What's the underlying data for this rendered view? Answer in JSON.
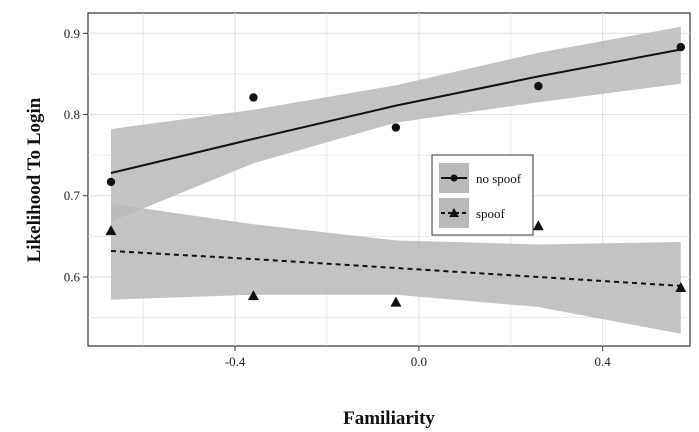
{
  "chart_data": {
    "type": "scatter",
    "xlabel": "Familiarity",
    "ylabel": "Likelihood To Login",
    "xlim": [
      -0.72,
      0.59
    ],
    "ylim": [
      0.515,
      0.925
    ],
    "x_ticks": [
      -0.4,
      0.0,
      0.4
    ],
    "x_tick_labels": [
      "-0.4",
      "0.0",
      "0.4"
    ],
    "y_ticks": [
      0.6,
      0.7,
      0.8,
      0.9
    ],
    "y_tick_labels": [
      "0.6",
      "0.7",
      "0.8",
      "0.9"
    ],
    "grid": true,
    "legend_position": "center-right",
    "series": [
      {
        "name": "no spoof",
        "marker": "circle",
        "line_style": "solid",
        "points": [
          {
            "x": -0.67,
            "y": 0.717
          },
          {
            "x": -0.36,
            "y": 0.821
          },
          {
            "x": -0.05,
            "y": 0.784
          },
          {
            "x": 0.26,
            "y": 0.835
          },
          {
            "x": 0.57,
            "y": 0.883
          }
        ],
        "trend": [
          {
            "x": -0.67,
            "y": 0.728
          },
          {
            "x": -0.36,
            "y": 0.77
          },
          {
            "x": -0.05,
            "y": 0.811
          },
          {
            "x": 0.26,
            "y": 0.847
          },
          {
            "x": 0.57,
            "y": 0.88
          }
        ],
        "band_lower": [
          0.668,
          0.74,
          0.79,
          0.815,
          0.838
        ],
        "band_upper": [
          0.782,
          0.806,
          0.836,
          0.876,
          0.908
        ]
      },
      {
        "name": "spoof",
        "marker": "triangle",
        "line_style": "dashed",
        "points": [
          {
            "x": -0.67,
            "y": 0.657
          },
          {
            "x": -0.36,
            "y": 0.577
          },
          {
            "x": -0.05,
            "y": 0.569
          },
          {
            "x": 0.26,
            "y": 0.663
          },
          {
            "x": 0.57,
            "y": 0.587
          }
        ],
        "trend": [
          {
            "x": -0.67,
            "y": 0.632
          },
          {
            "x": -0.36,
            "y": 0.622
          },
          {
            "x": -0.05,
            "y": 0.611
          },
          {
            "x": 0.26,
            "y": 0.6
          },
          {
            "x": 0.57,
            "y": 0.589
          }
        ],
        "band_lower": [
          0.572,
          0.578,
          0.578,
          0.563,
          0.53
        ],
        "band_upper": [
          0.69,
          0.665,
          0.645,
          0.64,
          0.643
        ]
      }
    ]
  },
  "colors": {
    "panel": "#ffffff",
    "grid": "#dddddd",
    "band": "#b9b9b9",
    "line": "#111111",
    "axis": "#333333"
  }
}
